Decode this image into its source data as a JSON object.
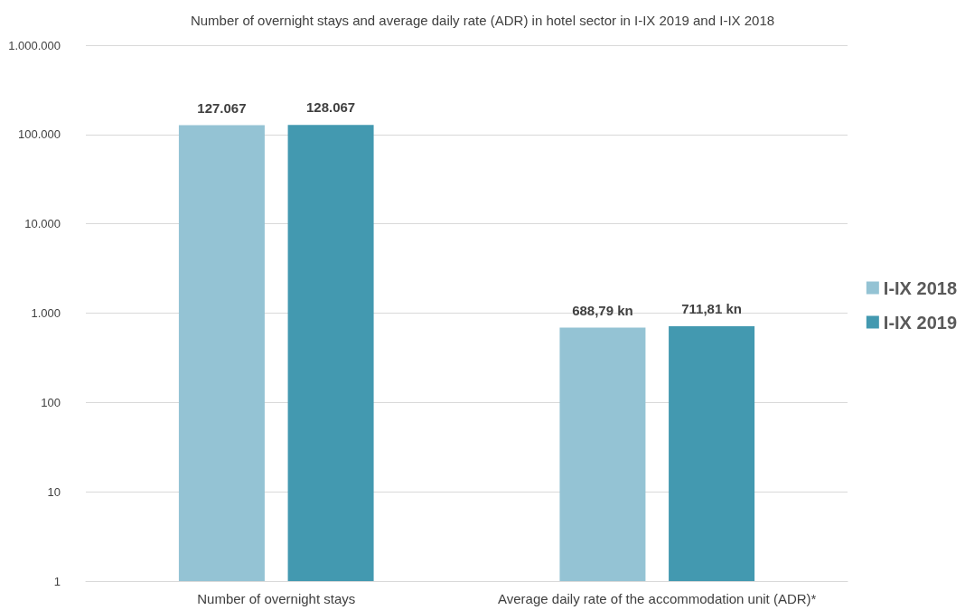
{
  "chart_data": {
    "type": "bar",
    "title": "Number of overnight stays and average daily rate (ADR) in hotel sector in I-IX 2019 and I-IX 2018",
    "categories": [
      "Number of overnight stays",
      "Average daily rate of the accommodation unit (ADR)*"
    ],
    "series": [
      {
        "name": "I-IX 2018",
        "color": "#94c3d4",
        "values": [
          127067,
          688.79
        ],
        "value_labels": [
          "127.067",
          "688,79 kn"
        ]
      },
      {
        "name": "I-IX 2019",
        "color": "#4399b0",
        "values": [
          128067,
          711.81
        ],
        "value_labels": [
          "128.067",
          "711,81 kn"
        ]
      }
    ],
    "log": "y",
    "ylim": [
      1,
      1000000
    ],
    "yticks": [
      1,
      10,
      100,
      {
        "value": 1000,
        "label": "1.000"
      },
      {
        "value": 10000,
        "label": "10.000"
      },
      {
        "value": 100000,
        "label": "100.000"
      },
      {
        "value": 1000000,
        "label": "1.000.000"
      }
    ],
    "grid": "y",
    "legend": "right"
  }
}
